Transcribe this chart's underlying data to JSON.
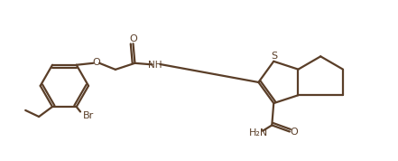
{
  "background_color": "#ffffff",
  "line_color": "#5a3e28",
  "line_width": 1.6,
  "fig_width": 4.41,
  "fig_height": 1.78,
  "dpi": 100,
  "xlim": [
    0,
    11
  ],
  "ylim": [
    0,
    4.5
  ]
}
